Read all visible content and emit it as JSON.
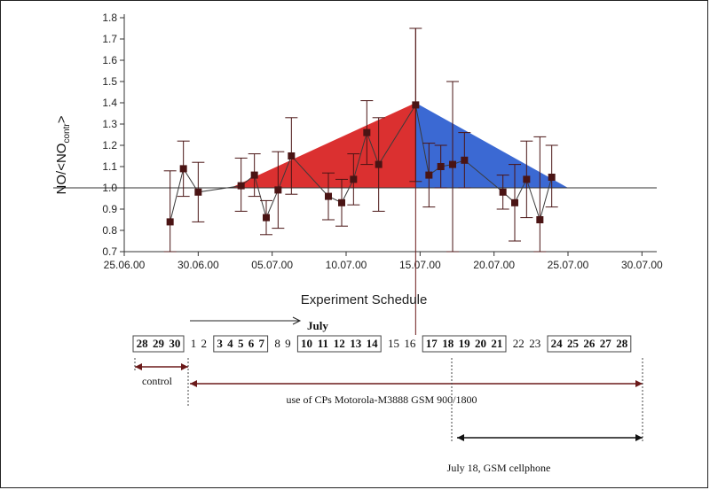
{
  "chart_data": {
    "type": "line",
    "title": "",
    "xlabel": "",
    "ylabel": "NO/<NO",
    "ylabel_sub": "contr",
    "ylabel_suffix": ">",
    "xlim": [
      0,
      36
    ],
    "ylim": [
      0.7,
      1.8
    ],
    "x_ticks": [
      {
        "x": 0,
        "label": "25.06.00"
      },
      {
        "x": 5,
        "label": "30.06.00"
      },
      {
        "x": 10,
        "label": "05.07.00"
      },
      {
        "x": 15,
        "label": "10.07.00"
      },
      {
        "x": 20,
        "label": "15.07.00"
      },
      {
        "x": 25,
        "label": "20.07.00"
      },
      {
        "x": 30,
        "label": "25.07.00"
      },
      {
        "x": 35,
        "label": "30.07.00"
      }
    ],
    "y_ticks": [
      "0.7",
      "0.8",
      "0.9",
      "1.0",
      "1.1",
      "1.2",
      "1.3",
      "1.4",
      "1.5",
      "1.6",
      "1.7",
      "1.8"
    ],
    "baseline": 1.0,
    "series": [
      {
        "color": "#4a1414",
        "points": [
          {
            "x": 3.1,
            "y": 0.84,
            "lo": 0.7,
            "hi": 1.08
          },
          {
            "x": 4.0,
            "y": 1.09,
            "lo": 0.96,
            "hi": 1.22
          },
          {
            "x": 5.0,
            "y": 0.98,
            "lo": 0.84,
            "hi": 1.12
          },
          {
            "x": 7.9,
            "y": 1.01,
            "lo": 0.89,
            "hi": 1.14
          },
          {
            "x": 8.8,
            "y": 1.06,
            "lo": 0.96,
            "hi": 1.16
          },
          {
            "x": 9.6,
            "y": 0.86,
            "lo": 0.78,
            "hi": 0.94
          },
          {
            "x": 10.4,
            "y": 0.99,
            "lo": 0.81,
            "hi": 1.17
          },
          {
            "x": 11.3,
            "y": 1.15,
            "lo": 0.97,
            "hi": 1.33
          },
          {
            "x": 13.8,
            "y": 0.96,
            "lo": 0.85,
            "hi": 1.07
          },
          {
            "x": 14.7,
            "y": 0.93,
            "lo": 0.82,
            "hi": 1.04
          },
          {
            "x": 15.5,
            "y": 1.04,
            "lo": 0.92,
            "hi": 1.16
          },
          {
            "x": 16.4,
            "y": 1.26,
            "lo": 1.11,
            "hi": 1.41
          },
          {
            "x": 17.2,
            "y": 1.11,
            "lo": 0.89,
            "hi": 1.33
          },
          {
            "x": 19.7,
            "y": 1.39,
            "lo": 1.03,
            "hi": 1.75
          },
          {
            "x": 20.6,
            "y": 1.06,
            "lo": 0.91,
            "hi": 1.21
          },
          {
            "x": 21.4,
            "y": 1.1,
            "lo": 1.0,
            "hi": 1.2
          },
          {
            "x": 22.2,
            "y": 1.11,
            "lo": 0.7,
            "hi": 1.5
          },
          {
            "x": 23.0,
            "y": 1.13,
            "lo": 1.0,
            "hi": 1.26
          },
          {
            "x": 25.6,
            "y": 0.98,
            "lo": 0.9,
            "hi": 1.06
          },
          {
            "x": 26.4,
            "y": 0.93,
            "lo": 0.75,
            "hi": 1.11
          },
          {
            "x": 27.2,
            "y": 1.04,
            "lo": 0.86,
            "hi": 1.22
          },
          {
            "x": 28.1,
            "y": 0.85,
            "lo": 0.7,
            "hi": 1.24
          },
          {
            "x": 28.9,
            "y": 1.05,
            "lo": 0.91,
            "hi": 1.2
          }
        ]
      }
    ],
    "rise_area": {
      "color": "#d81e1e",
      "x_start": 7.2,
      "x_peak": 19.7,
      "y_peak": 1.4
    },
    "fall_area": {
      "color": "#2a5ccf",
      "x_peak": 19.7,
      "x_end": 30.0,
      "y_peak": 1.4
    },
    "marker_line_x": 19.7
  },
  "schedule": {
    "title": "Experiment Schedule",
    "month_label": "July",
    "groups": [
      {
        "days": [
          "28",
          "29",
          "30"
        ],
        "boxed": true
      },
      {
        "days": [
          "1",
          "2"
        ],
        "boxed": false
      },
      {
        "days": [
          "3",
          "4",
          "5",
          "6",
          "7"
        ],
        "boxed": true
      },
      {
        "days": [
          "8",
          "9"
        ],
        "boxed": false
      },
      {
        "days": [
          "10",
          "11",
          "12",
          "13",
          "14"
        ],
        "boxed": true
      },
      {
        "days": [
          "15",
          "16"
        ],
        "boxed": false
      },
      {
        "days": [
          "17",
          "18",
          "19",
          "20",
          "21"
        ],
        "boxed": true
      },
      {
        "days": [
          "22",
          "23"
        ],
        "boxed": false
      },
      {
        "days": [
          "24",
          "25",
          "26",
          "27",
          "28"
        ],
        "boxed": true
      }
    ],
    "control_label": "control",
    "cp_label": "use of CPs Motorola-M3888 GSM 900/1800",
    "gsm_label": "July 18, GSM cellphone"
  }
}
